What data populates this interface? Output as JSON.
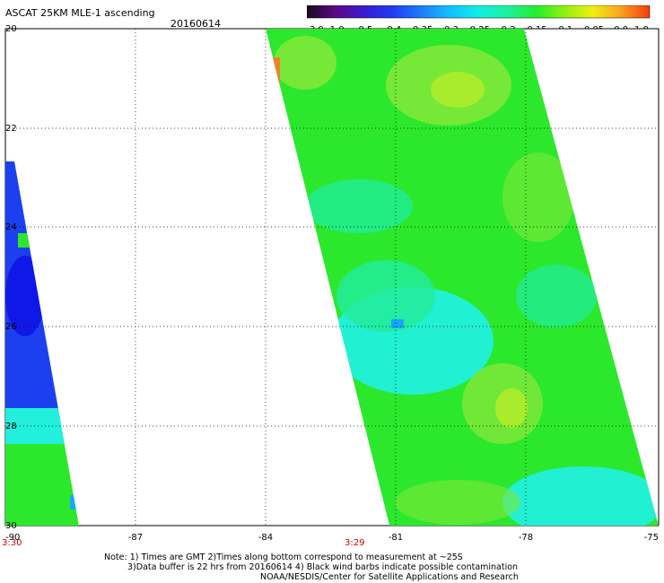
{
  "header": {
    "title": "ASCAT 25KM MLE-1 ascending",
    "date": "20160614"
  },
  "colorbar": {
    "tick_labels": [
      "-3.0",
      "-1.0",
      "-0.5",
      "-0.4",
      "-0.35",
      "-0.3",
      "-0.25",
      "-0.2",
      "-0.15",
      "-0.1",
      "-0.05",
      "0.0",
      "1.0"
    ],
    "colors": [
      "#1a0a1e",
      "#5a0a82",
      "#3a1ad2",
      "#1f3cf2",
      "#1e7cf8",
      "#10c0ff",
      "#10eee6",
      "#1ef0a0",
      "#22ee30",
      "#8ef010",
      "#f0f010",
      "#fba020",
      "#f43a10"
    ]
  },
  "map": {
    "y_axis_labels": [
      "20",
      "22",
      "24",
      "26",
      "28",
      "30"
    ],
    "x_axis_labels": [
      "-90",
      "-87",
      "-84",
      "-81",
      "-78",
      "-75"
    ],
    "time_labels": [
      "3:30",
      "3:29"
    ],
    "time_label_color": "#cc0000",
    "swath_colors": {
      "green": "#2ce82c",
      "light_green": "#7ee83a",
      "yellow_green": "#b6ec28",
      "cyan": "#22f0dc",
      "aqua_green": "#22ec9a",
      "blue": "#1c40f0",
      "deep_blue": "#1018e8",
      "sky_blue": "#18a8f8",
      "orange": "#f0802a",
      "purple": "#5010b0"
    }
  },
  "notes": {
    "line1": "Note: 1) Times are GMT 2)Times along bottom correspond to measurement at ~25S",
    "line2": "3)Data buffer is 22 hrs from 20160614 4) Black wind barbs indicate possible contamination",
    "line3": "NOAA/NESDIS/Center for Satellite Applications and Research"
  }
}
